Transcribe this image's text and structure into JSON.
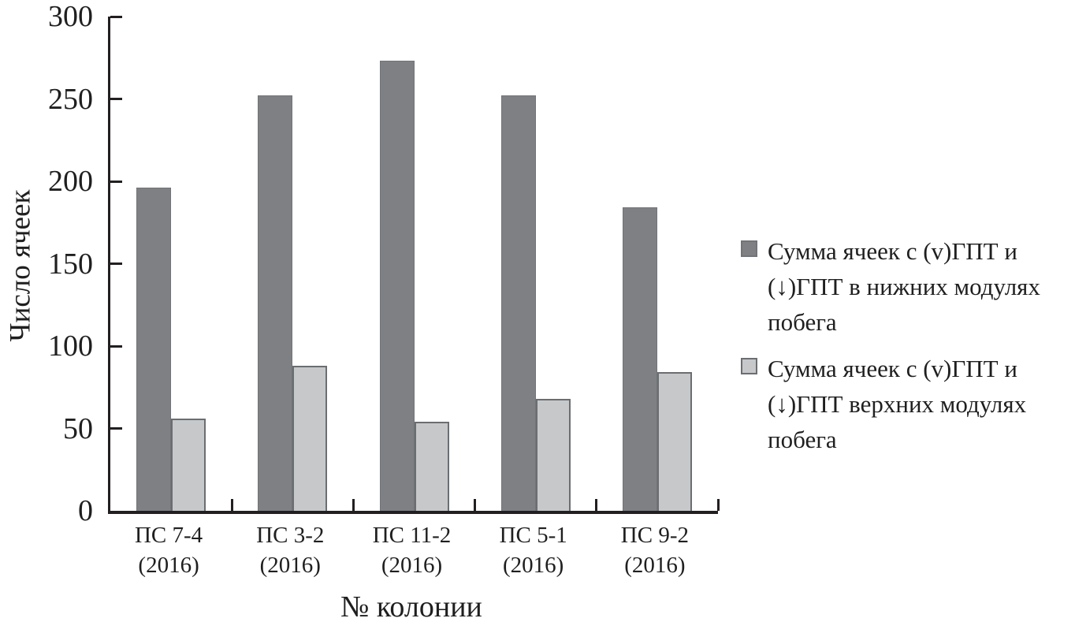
{
  "figure": {
    "background": "#ffffff",
    "text_color": "#1f1f1f",
    "axis_color": "#231f20"
  },
  "chart_data": {
    "type": "bar",
    "title": "",
    "xlabel": "№ колонии",
    "ylabel": "Число ячеек",
    "ylim": [
      0,
      300
    ],
    "yticks": [
      0,
      50,
      100,
      150,
      200,
      250,
      300
    ],
    "grid": false,
    "legend_position": "right",
    "categories": [
      "ПС 7-4 (2016)",
      "ПС 3-2 (2016)",
      "ПС 11-2 (2016)",
      "ПС 5-1 (2016)",
      "ПС 9-2 (2016)"
    ],
    "category_label_lines": [
      [
        "ПС 7-4",
        "(2016)"
      ],
      [
        "ПС 3-2",
        "(2016)"
      ],
      [
        "ПС 11-2",
        "(2016)"
      ],
      [
        "ПС 5-1",
        "(2016)"
      ],
      [
        "ПС 9-2",
        "(2016)"
      ]
    ],
    "series": [
      {
        "name": "Сумма ячеек с (v)ГПТ и (↓)ГПТ в нижних модулях побега",
        "label_lines": [
          "Сумма ячеек с (v)ГПТ и",
          "(↓)ГПТ в нижних модулях",
          "побега"
        ],
        "values": [
          196,
          252,
          273,
          252,
          184
        ],
        "fill": "#7e8083",
        "border": "#717478"
      },
      {
        "name": "Сумма ячеек с (v)ГПТ и (↓)ГПТ верхних модулях побега",
        "label_lines": [
          "Сумма ячеек с (v)ГПТ и",
          "(↓)ГПТ верхних модулях",
          "побега"
        ],
        "values": [
          56,
          88,
          54,
          68,
          84
        ],
        "fill": "#c6c8ca",
        "border": "#6b6e71"
      }
    ]
  }
}
